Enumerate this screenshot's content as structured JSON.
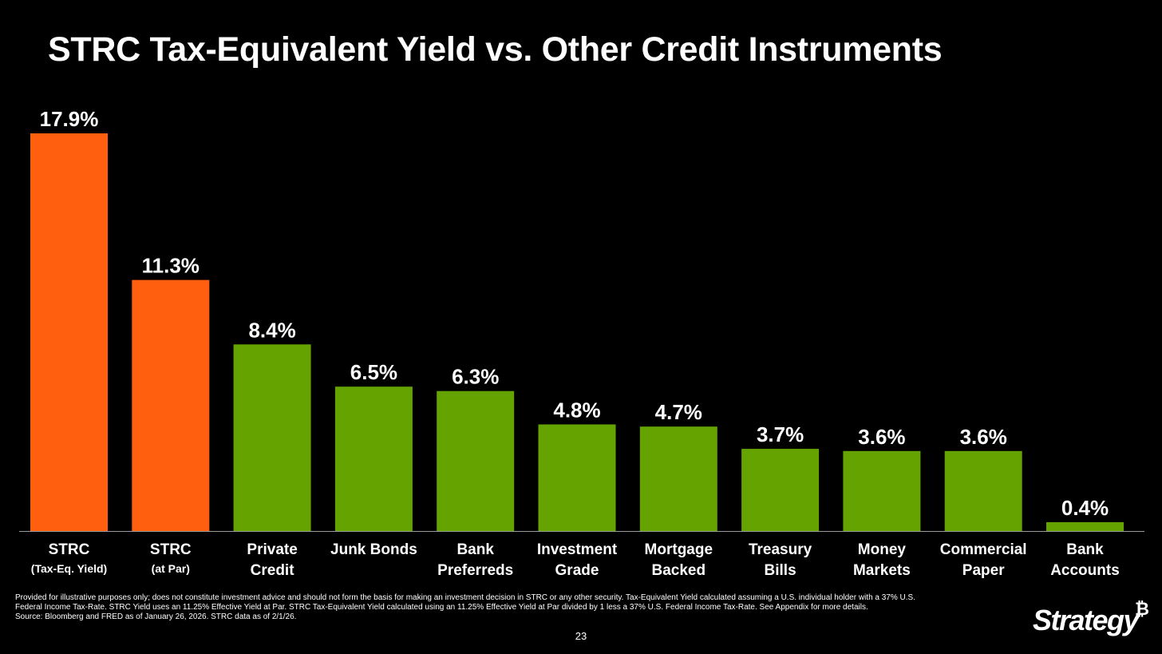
{
  "slide": {
    "title": "STRC Tax-Equivalent Yield vs. Other Credit Instruments",
    "footnotes": [
      "Provided for illustrative purposes only; does not constitute investment advice and should not form the basis for making an investment decision in STRC or any other security. Tax-Equivalent Yield calculated assuming a U.S. individual holder with a 37% U.S.",
      "Federal Income Tax-Rate. STRC Yield uses an 11.25% Effective Yield at Par. STRC Tax-Equivalent Yield calculated using an 11.25% Effective Yield at Par divided by 1 less a 37% U.S. Federal Income Tax-Rate. See Appendix for more details.",
      "Source: Bloomberg and FRED as of January 26, 2026. STRC data as of 2/1/26."
    ],
    "page_number": "23",
    "brand": {
      "name": "Strategy",
      "mark": "₿"
    }
  },
  "colors": {
    "background": "#000000",
    "strc": "#FF5F0F",
    "other": "#65A300",
    "axis": "#9A9A9A",
    "text": "#FFFFFF"
  },
  "chart_data": {
    "type": "bar",
    "title": "STRC Tax-Equivalent Yield vs. Other Credit Instruments",
    "xlabel": "",
    "ylabel": "",
    "ylim": [
      0,
      17.9
    ],
    "grid": false,
    "legend": "none",
    "value_suffix": "%",
    "categories": [
      {
        "line1": "STRC",
        "line2": "(Tax-Eq. Yield)",
        "style": "sub",
        "group": "strc"
      },
      {
        "line1": "STRC",
        "line2": "(at Par)",
        "style": "sub",
        "group": "strc"
      },
      {
        "line1": "Private",
        "line2": "Credit",
        "style": "full",
        "group": "other"
      },
      {
        "line1": "Junk Bonds",
        "line2": "",
        "style": "full",
        "group": "other"
      },
      {
        "line1": "Bank",
        "line2": "Preferreds",
        "style": "full",
        "group": "other"
      },
      {
        "line1": "Investment",
        "line2": "Grade",
        "style": "full",
        "group": "other"
      },
      {
        "line1": "Mortgage",
        "line2": "Backed",
        "style": "full",
        "group": "other"
      },
      {
        "line1": "Treasury",
        "line2": "Bills",
        "style": "full",
        "group": "other"
      },
      {
        "line1": "Money",
        "line2": "Markets",
        "style": "full",
        "group": "other"
      },
      {
        "line1": "Commercial",
        "line2": "Paper",
        "style": "full",
        "group": "other"
      },
      {
        "line1": "Bank",
        "line2": "Accounts",
        "style": "full",
        "group": "other"
      }
    ],
    "values": [
      17.9,
      11.3,
      8.4,
      6.5,
      6.3,
      4.8,
      4.7,
      3.7,
      3.6,
      3.6,
      0.4
    ],
    "value_labels": [
      "17.9%",
      "11.3%",
      "8.4%",
      "6.5%",
      "6.3%",
      "4.8%",
      "4.7%",
      "3.7%",
      "3.6%",
      "3.6%",
      "0.4%"
    ]
  }
}
